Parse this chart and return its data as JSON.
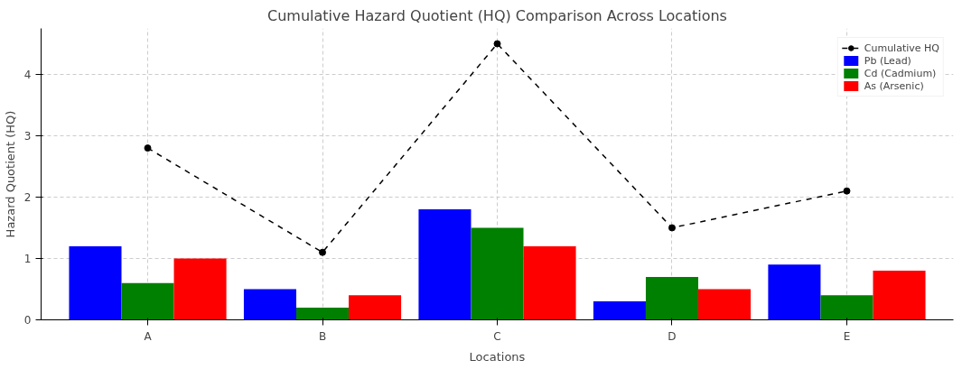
{
  "chart_data": {
    "type": "bar",
    "title": "Cumulative Hazard Quotient (HQ) Comparison Across Locations",
    "xlabel": "Locations",
    "ylabel": "Hazard Quotient (HQ)",
    "categories": [
      "A",
      "B",
      "C",
      "D",
      "E"
    ],
    "series": [
      {
        "name": "Cumulative HQ",
        "type": "line",
        "color": "#000000",
        "values": [
          2.8,
          1.1,
          4.5,
          1.5,
          2.1
        ],
        "marker": "circle",
        "line_style": "dashed"
      },
      {
        "name": "Pb (Lead)",
        "color": "#0000ff",
        "values": [
          1.2,
          0.5,
          1.8,
          0.3,
          0.9
        ]
      },
      {
        "name": "Cd (Cadmium)",
        "color": "#008000",
        "values": [
          0.6,
          0.2,
          1.5,
          0.7,
          0.4
        ]
      },
      {
        "name": "As (Arsenic)",
        "color": "#ff0000",
        "values": [
          1.0,
          0.4,
          1.2,
          0.5,
          0.8
        ]
      }
    ],
    "ylim": [
      0,
      4.75
    ],
    "yticks": [
      0,
      1,
      2,
      3,
      4
    ],
    "grid": true,
    "legend": "top right"
  }
}
